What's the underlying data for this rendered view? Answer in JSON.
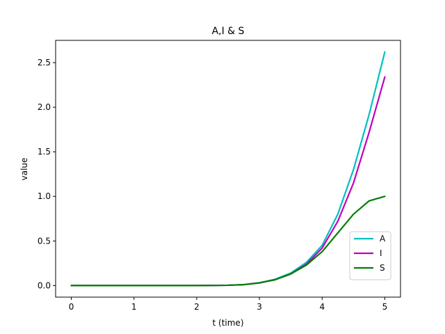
{
  "chart_data": {
    "type": "line",
    "title": "A,I & S",
    "xlabel": "t (time)",
    "ylabel": "value",
    "xlim": [
      -0.25,
      5.25
    ],
    "ylim": [
      -0.13,
      2.75
    ],
    "xticks": [
      0,
      1,
      2,
      3,
      4,
      5
    ],
    "yticks": [
      0.0,
      0.5,
      1.0,
      1.5,
      2.0,
      2.5
    ],
    "xtick_labels": [
      "0",
      "1",
      "2",
      "3",
      "4",
      "5"
    ],
    "ytick_labels": [
      "0.0",
      "0.5",
      "1.0",
      "1.5",
      "2.0",
      "2.5"
    ],
    "grid": false,
    "legend_position": "lower-right",
    "x": [
      0,
      0.5,
      1,
      1.5,
      2,
      2.5,
      2.75,
      3,
      3.25,
      3.5,
      3.75,
      4,
      4.25,
      4.5,
      4.75,
      5
    ],
    "series": [
      {
        "name": "A",
        "color": "#00bfbf",
        "values": [
          0,
          0,
          0,
          0,
          0,
          0.003,
          0.01,
          0.03,
          0.07,
          0.14,
          0.26,
          0.45,
          0.8,
          1.3,
          1.92,
          2.62
        ]
      },
      {
        "name": "I",
        "color": "#bf00bf",
        "values": [
          0,
          0,
          0,
          0,
          0,
          0.003,
          0.01,
          0.03,
          0.065,
          0.13,
          0.24,
          0.42,
          0.72,
          1.15,
          1.72,
          2.34
        ]
      },
      {
        "name": "S",
        "color": "#008000",
        "values": [
          0,
          0,
          0,
          0,
          0,
          0.003,
          0.01,
          0.03,
          0.065,
          0.13,
          0.23,
          0.38,
          0.59,
          0.8,
          0.95,
          1.0
        ]
      }
    ]
  }
}
